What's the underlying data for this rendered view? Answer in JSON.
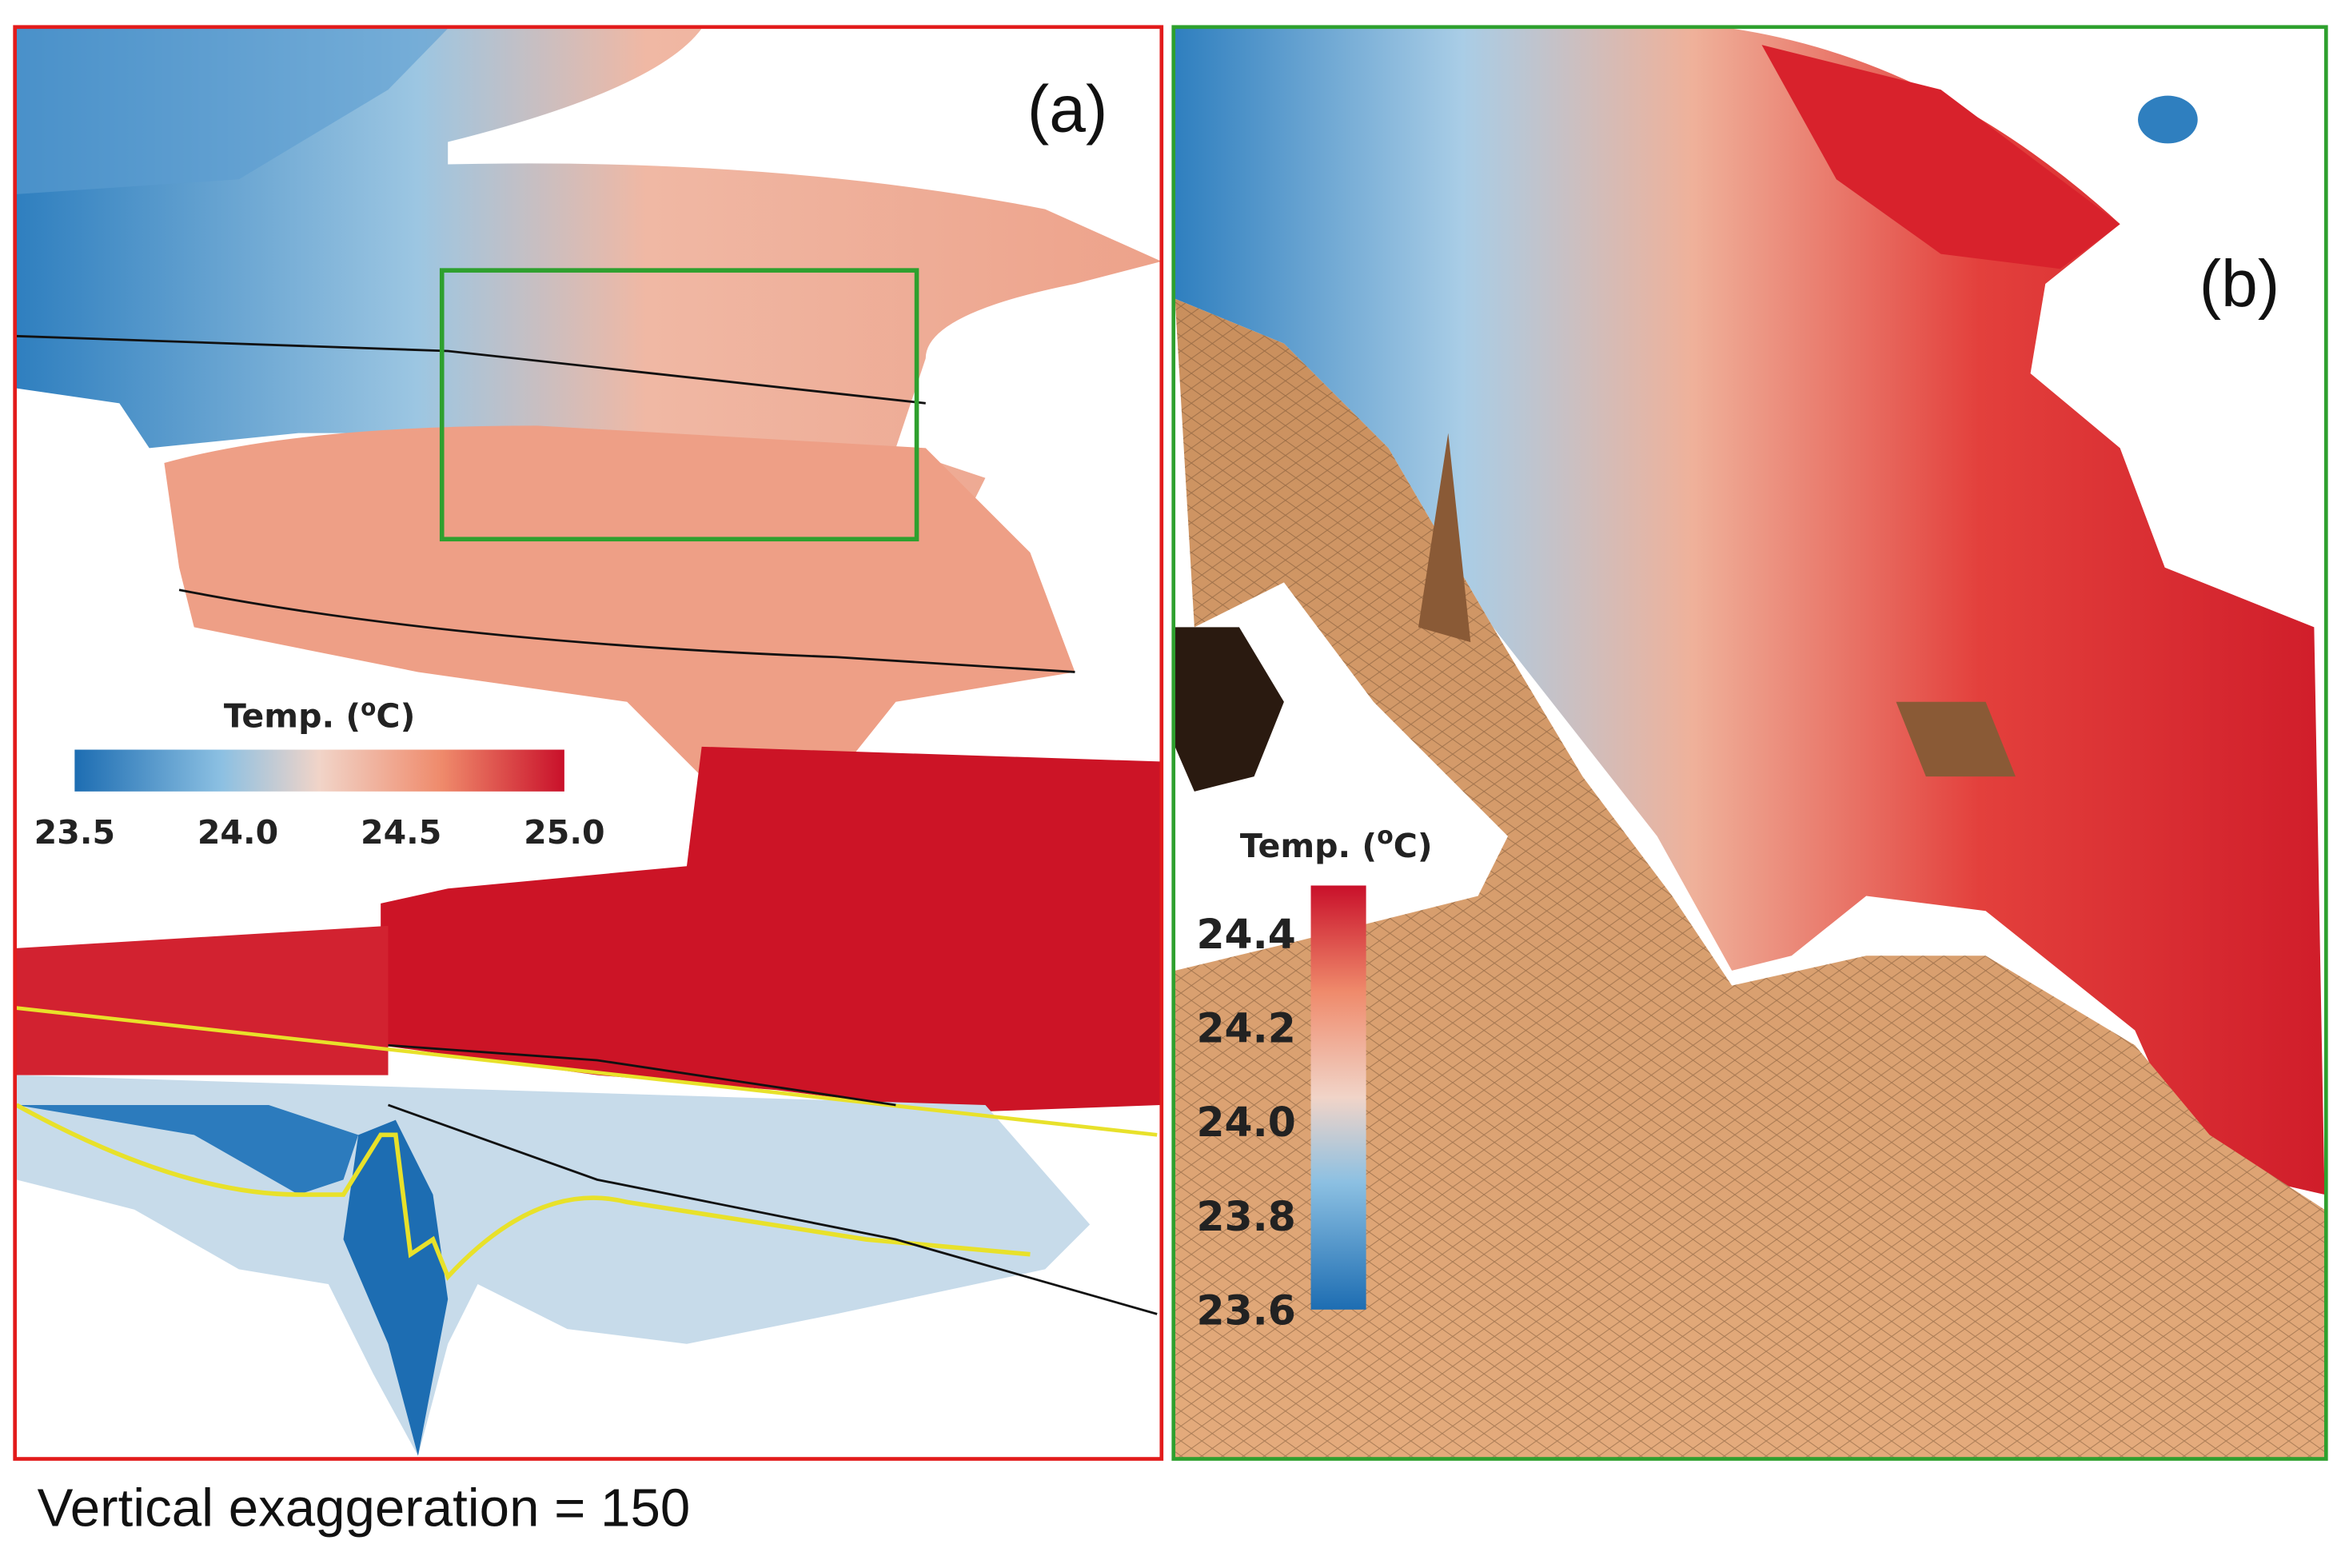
{
  "panels": [
    {
      "label": "(a)",
      "colorbar": {
        "title": {
          "prefix": "Temp. (",
          "sup": "o",
          "suffix": "C)"
        },
        "ticks": [
          "23.5",
          "24.0",
          "24.5",
          "25.0"
        ]
      }
    },
    {
      "label": "(b)",
      "colorbar": {
        "title": {
          "prefix": "Temp. (",
          "sup": "o",
          "suffix": "C)"
        },
        "ticks": [
          "24.4",
          "24.2",
          "24.0",
          "23.8",
          "23.6"
        ]
      }
    }
  ],
  "caption": "Vertical exaggeration = 150"
}
